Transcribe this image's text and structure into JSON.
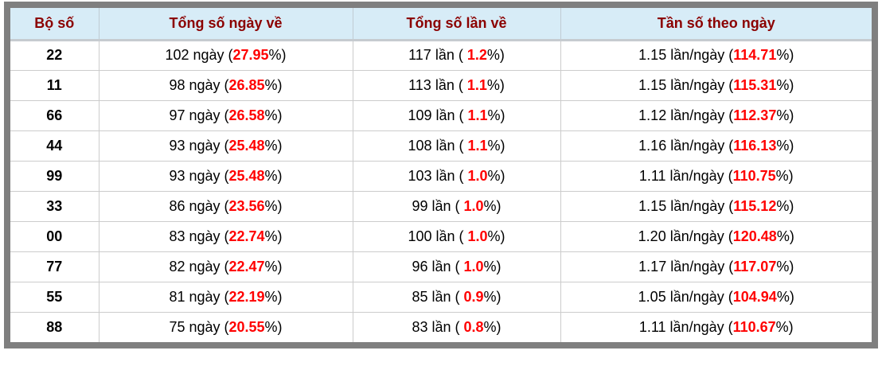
{
  "colors": {
    "frame_border": "#7f7f7f",
    "header_background": "#d7ecf7",
    "header_text": "#8b0000",
    "body_text": "#000000",
    "percent_highlight": "#ff0000",
    "grid_line": "#cccccc"
  },
  "table": {
    "columns": [
      {
        "name": "pair",
        "label": "Bộ số"
      },
      {
        "name": "days",
        "label": "Tổng số ngày về"
      },
      {
        "name": "times",
        "label": "Tổng số lần về"
      },
      {
        "name": "freq",
        "label": "Tần số theo ngày"
      }
    ],
    "rows": [
      {
        "cells": [
          [
            {
              "text": "22"
            }
          ],
          [
            {
              "text": "102 ngày ("
            },
            {
              "text": "27.95",
              "em": true
            },
            {
              "text": "%)"
            }
          ],
          [
            {
              "text": "117 lần ( "
            },
            {
              "text": "1.2",
              "em": true
            },
            {
              "text": "%)"
            }
          ],
          [
            {
              "text": "1.15 lần/ngày ("
            },
            {
              "text": "114.71",
              "em": true
            },
            {
              "text": "%)"
            }
          ]
        ]
      },
      {
        "cells": [
          [
            {
              "text": "11"
            }
          ],
          [
            {
              "text": "98 ngày ("
            },
            {
              "text": "26.85",
              "em": true
            },
            {
              "text": "%)"
            }
          ],
          [
            {
              "text": "113 lần ( "
            },
            {
              "text": "1.1",
              "em": true
            },
            {
              "text": "%)"
            }
          ],
          [
            {
              "text": "1.15 lần/ngày ("
            },
            {
              "text": "115.31",
              "em": true
            },
            {
              "text": "%)"
            }
          ]
        ]
      },
      {
        "cells": [
          [
            {
              "text": "66"
            }
          ],
          [
            {
              "text": "97 ngày ("
            },
            {
              "text": "26.58",
              "em": true
            },
            {
              "text": "%)"
            }
          ],
          [
            {
              "text": "109 lần ( "
            },
            {
              "text": "1.1",
              "em": true
            },
            {
              "text": "%)"
            }
          ],
          [
            {
              "text": "1.12 lần/ngày ("
            },
            {
              "text": "112.37",
              "em": true
            },
            {
              "text": "%)"
            }
          ]
        ]
      },
      {
        "cells": [
          [
            {
              "text": "44"
            }
          ],
          [
            {
              "text": "93 ngày ("
            },
            {
              "text": "25.48",
              "em": true
            },
            {
              "text": "%)"
            }
          ],
          [
            {
              "text": "108 lần ( "
            },
            {
              "text": "1.1",
              "em": true
            },
            {
              "text": "%)"
            }
          ],
          [
            {
              "text": "1.16 lần/ngày ("
            },
            {
              "text": "116.13",
              "em": true
            },
            {
              "text": "%)"
            }
          ]
        ]
      },
      {
        "cells": [
          [
            {
              "text": "99"
            }
          ],
          [
            {
              "text": "93 ngày ("
            },
            {
              "text": "25.48",
              "em": true
            },
            {
              "text": "%)"
            }
          ],
          [
            {
              "text": "103 lần ( "
            },
            {
              "text": "1.0",
              "em": true
            },
            {
              "text": "%)"
            }
          ],
          [
            {
              "text": "1.11 lần/ngày ("
            },
            {
              "text": "110.75",
              "em": true
            },
            {
              "text": "%)"
            }
          ]
        ]
      },
      {
        "cells": [
          [
            {
              "text": "33"
            }
          ],
          [
            {
              "text": "86 ngày ("
            },
            {
              "text": "23.56",
              "em": true
            },
            {
              "text": "%)"
            }
          ],
          [
            {
              "text": "99 lần ( "
            },
            {
              "text": "1.0",
              "em": true
            },
            {
              "text": "%)"
            }
          ],
          [
            {
              "text": "1.15 lần/ngày ("
            },
            {
              "text": "115.12",
              "em": true
            },
            {
              "text": "%)"
            }
          ]
        ]
      },
      {
        "cells": [
          [
            {
              "text": "00"
            }
          ],
          [
            {
              "text": "83 ngày ("
            },
            {
              "text": "22.74",
              "em": true
            },
            {
              "text": "%)"
            }
          ],
          [
            {
              "text": "100 lần ( "
            },
            {
              "text": "1.0",
              "em": true
            },
            {
              "text": "%)"
            }
          ],
          [
            {
              "text": "1.20 lần/ngày ("
            },
            {
              "text": "120.48",
              "em": true
            },
            {
              "text": "%)"
            }
          ]
        ]
      },
      {
        "cells": [
          [
            {
              "text": "77"
            }
          ],
          [
            {
              "text": "82 ngày ("
            },
            {
              "text": "22.47",
              "em": true
            },
            {
              "text": "%)"
            }
          ],
          [
            {
              "text": "96 lần ( "
            },
            {
              "text": "1.0",
              "em": true
            },
            {
              "text": "%)"
            }
          ],
          [
            {
              "text": "1.17 lần/ngày ("
            },
            {
              "text": "117.07",
              "em": true
            },
            {
              "text": "%)"
            }
          ]
        ]
      },
      {
        "cells": [
          [
            {
              "text": "55"
            }
          ],
          [
            {
              "text": "81 ngày ("
            },
            {
              "text": "22.19",
              "em": true
            },
            {
              "text": "%)"
            }
          ],
          [
            {
              "text": "85 lần ( "
            },
            {
              "text": "0.9",
              "em": true
            },
            {
              "text": "%)"
            }
          ],
          [
            {
              "text": "1.05 lần/ngày ("
            },
            {
              "text": "104.94",
              "em": true
            },
            {
              "text": "%)"
            }
          ]
        ]
      },
      {
        "cells": [
          [
            {
              "text": "88"
            }
          ],
          [
            {
              "text": "75 ngày ("
            },
            {
              "text": "20.55",
              "em": true
            },
            {
              "text": "%)"
            }
          ],
          [
            {
              "text": "83 lần ( "
            },
            {
              "text": "0.8",
              "em": true
            },
            {
              "text": "%)"
            }
          ],
          [
            {
              "text": "1.11 lần/ngày ("
            },
            {
              "text": "110.67",
              "em": true
            },
            {
              "text": "%)"
            }
          ]
        ]
      }
    ]
  }
}
